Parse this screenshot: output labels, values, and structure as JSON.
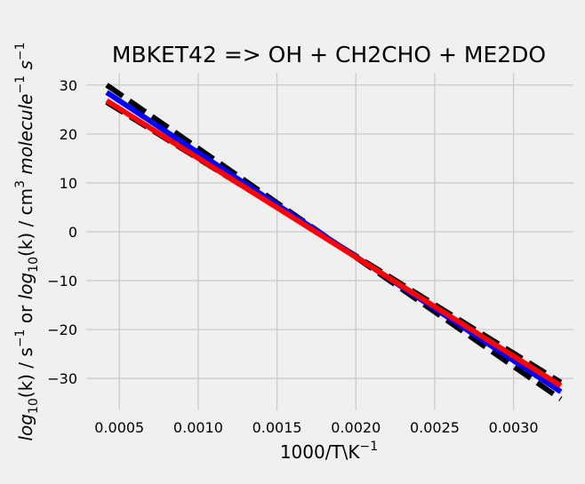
{
  "chart_data": {
    "type": "line",
    "title": "MBKET42 => OH + CH2CHO + ME2DO",
    "xlabel": {
      "text": "1000/T\\K",
      "sup": "−1"
    },
    "ylabel": {
      "p1": "log",
      "p1sub": "10",
      "p2": "(k) / s",
      "p2sup": "−1",
      "p3": " or ",
      "p4": "log",
      "p4sub": "10",
      "p5": "(k) / cm",
      "p5sup": "3",
      "p6": " molecule",
      "p6sup": "−1",
      "p7": " s",
      "p7sup": "−1"
    },
    "xlim": [
      0.00029,
      0.00338
    ],
    "ylim": [
      -36.5,
      32.5
    ],
    "grid": true,
    "xticks": [
      0.0005,
      0.001,
      0.0015,
      0.002,
      0.0025,
      0.003
    ],
    "xtick_labels": [
      "0.0005",
      "0.0010",
      "0.0015",
      "0.0020",
      "0.0025",
      "0.0030"
    ],
    "yticks": [
      -30,
      -20,
      -10,
      0,
      10,
      20,
      30
    ],
    "ytick_labels": [
      "−30",
      "−20",
      "−10",
      "0",
      "10",
      "20",
      "30"
    ],
    "series": [
      {
        "color": "#000000",
        "style": "dashed",
        "x": [
          0.00042,
          0.0033
        ],
        "y": [
          30.0,
          -34.2
        ]
      },
      {
        "color": "#000000",
        "style": "dashed",
        "x": [
          0.00042,
          0.0033
        ],
        "y": [
          26.5,
          -30.8
        ]
      },
      {
        "color": "#0000ff",
        "style": "solid",
        "x": [
          0.00042,
          0.0033
        ],
        "y": [
          28.5,
          -32.7
        ]
      },
      {
        "color": "#ff0000",
        "style": "solid",
        "x": [
          0.00042,
          0.0033
        ],
        "y": [
          26.8,
          -31.5
        ]
      }
    ]
  }
}
